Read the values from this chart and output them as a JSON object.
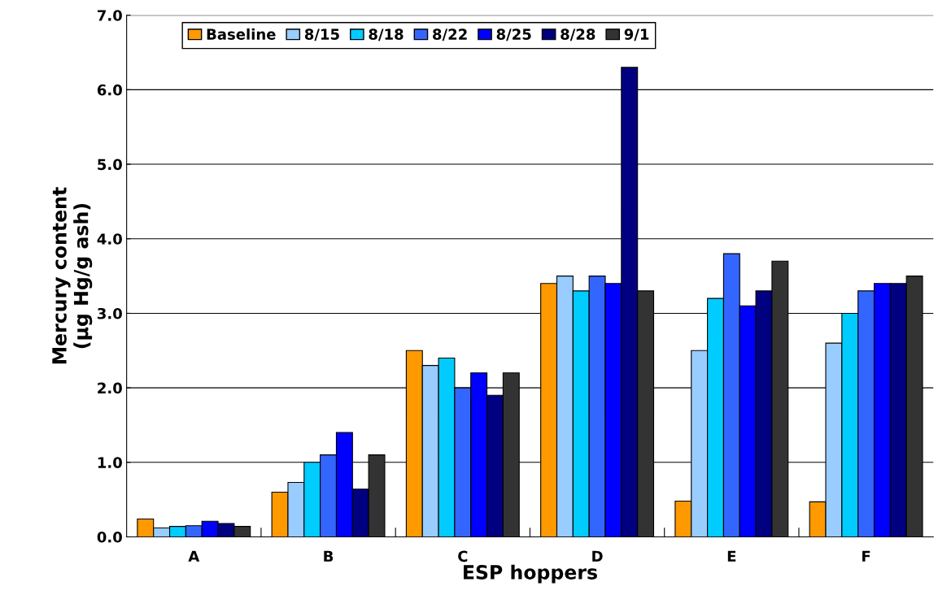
{
  "chart_data": {
    "type": "bar",
    "xlabel": "ESP hoppers",
    "ylabel": "Mercury content\n(µg Hg/g ash)",
    "categories": [
      "A",
      "B",
      "C",
      "D",
      "E",
      "F"
    ],
    "series": [
      {
        "name": "Baseline",
        "color": "#ff9900",
        "values": [
          0.24,
          0.6,
          2.5,
          3.4,
          0.48,
          0.47
        ]
      },
      {
        "name": "8/15",
        "color": "#99ccff",
        "values": [
          0.12,
          0.73,
          2.3,
          3.5,
          2.5,
          2.6
        ]
      },
      {
        "name": "8/18",
        "color": "#00ccff",
        "values": [
          0.14,
          1.0,
          2.4,
          3.3,
          3.2,
          3.0
        ]
      },
      {
        "name": "8/22",
        "color": "#3366ff",
        "values": [
          0.15,
          1.1,
          2.0,
          3.5,
          3.8,
          3.3
        ]
      },
      {
        "name": "8/25",
        "color": "#0000ff",
        "values": [
          0.21,
          1.4,
          2.2,
          3.4,
          3.1,
          3.4
        ]
      },
      {
        "name": "8/28",
        "color": "#000080",
        "values": [
          0.18,
          0.64,
          1.9,
          6.3,
          3.3,
          3.4
        ]
      },
      {
        "name": "9/1",
        "color": "#333333",
        "values": [
          0.14,
          1.1,
          2.2,
          3.3,
          3.7,
          3.5
        ]
      }
    ],
    "ylim": [
      0,
      7
    ],
    "yticks": [
      {
        "value": 0,
        "label": "0.0"
      },
      {
        "value": 1,
        "label": "1.0"
      },
      {
        "value": 2,
        "label": "2.0"
      },
      {
        "value": 3,
        "label": "3.0"
      },
      {
        "value": 4,
        "label": "4.0"
      },
      {
        "value": 5,
        "label": "5.0"
      },
      {
        "value": 6,
        "label": "6.0"
      },
      {
        "value": 7,
        "label": "7.0"
      }
    ],
    "grid": "y",
    "legend": "top left"
  }
}
